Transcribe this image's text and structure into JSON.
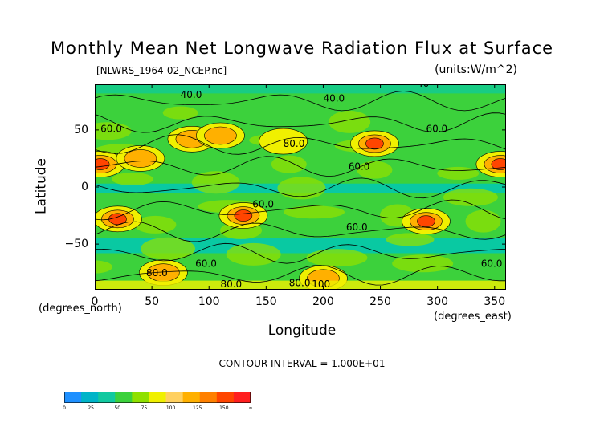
{
  "chart_data": {
    "type": "heatmap",
    "title": "Monthly Mean Net Longwave Radiation Flux at Surface",
    "subtitle_left": "[NLWRS_1964-02_NCEP.nc]",
    "subtitle_right": "(units:W/m^2)",
    "xlabel": "Longitude",
    "ylabel": "Latitude",
    "x_unit_label": "(degrees_east)",
    "y_unit_label": "(degrees_north)",
    "xlim": [
      0,
      360
    ],
    "ylim": [
      -90,
      90
    ],
    "x_ticks": [
      "0",
      "50",
      "100",
      "150",
      "200",
      "250",
      "300",
      "350"
    ],
    "x_tick_values": [
      0,
      50,
      100,
      150,
      200,
      250,
      300,
      350
    ],
    "y_ticks": [
      "50",
      "0",
      "−50"
    ],
    "y_tick_values": [
      50,
      0,
      -50
    ],
    "contour_interval_text": "CONTOUR INTERVAL = 1.000E+01",
    "contour_labels": [
      {
        "text": "40.0",
        "lon": 75,
        "lat": 78
      },
      {
        "text": "40.0",
        "lon": 200,
        "lat": 75
      },
      {
        "text": "40",
        "lon": 282,
        "lat": 88
      },
      {
        "text": "60.0",
        "lon": 5,
        "lat": 48
      },
      {
        "text": "60.0",
        "lon": 290,
        "lat": 48
      },
      {
        "text": "60.0",
        "lon": 222,
        "lat": 15
      },
      {
        "text": "80.0",
        "lon": 165,
        "lat": 35
      },
      {
        "text": "60.0",
        "lon": 138,
        "lat": -18
      },
      {
        "text": "60.0",
        "lon": 220,
        "lat": -38
      },
      {
        "text": "60.0",
        "lon": 88,
        "lat": -70
      },
      {
        "text": "60.0",
        "lon": 338,
        "lat": -70
      },
      {
        "text": "80.0",
        "lon": 45,
        "lat": -78
      },
      {
        "text": "80.0",
        "lon": 110,
        "lat": -88
      },
      {
        "text": "80.0",
        "lon": 170,
        "lat": -87
      },
      {
        "text": "100",
        "lon": 190,
        "lat": -88
      }
    ],
    "legend": {
      "levels": [
        "0",
        "25",
        "50",
        "75",
        "100",
        "125",
        "150",
        "∞"
      ],
      "colors": [
        "#1e90ff",
        "#00b4c8",
        "#11c9a0",
        "#3cd13c",
        "#8fe000",
        "#f0f000",
        "#ffd060",
        "#ffb000",
        "#ff8000",
        "#ff4500",
        "#ff1f1f"
      ]
    },
    "field_colors": {
      "low": "#00c8b4",
      "mid_low": "#3cd13c",
      "mid": "#8fe000",
      "mid_high": "#f0f000",
      "high": "#ffb000",
      "very_high": "#ff4500"
    },
    "features": [
      {
        "lon": 5,
        "lat": 20,
        "value": 150
      },
      {
        "lon": 355,
        "lat": 20,
        "value": 150
      },
      {
        "lon": 20,
        "lat": -28,
        "value": 130
      },
      {
        "lon": 130,
        "lat": -25,
        "value": 130
      },
      {
        "lon": 290,
        "lat": -30,
        "value": 130
      },
      {
        "lon": 245,
        "lat": 38,
        "value": 130
      },
      {
        "lon": 85,
        "lat": 42,
        "value": 120
      },
      {
        "lon": 110,
        "lat": 45,
        "value": 100
      },
      {
        "lon": 40,
        "lat": 25,
        "value": 110
      },
      {
        "lon": 165,
        "lat": 40,
        "value": 90
      },
      {
        "lon": 200,
        "lat": -80,
        "value": 110
      },
      {
        "lon": 60,
        "lat": -75,
        "value": 100
      }
    ]
  }
}
